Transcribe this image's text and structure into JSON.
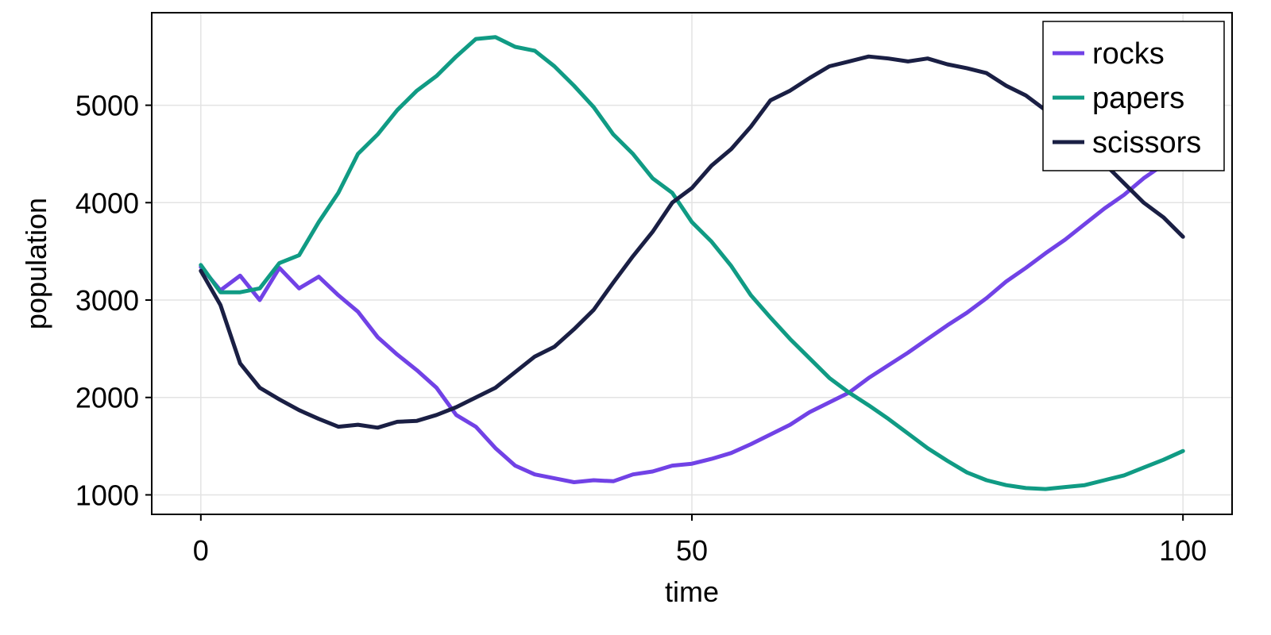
{
  "chart_data": {
    "type": "line",
    "title": "",
    "xlabel": "time",
    "ylabel": "population",
    "xlim": [
      -5,
      105
    ],
    "ylim": [
      800,
      5950
    ],
    "xticks": [
      0,
      50,
      100
    ],
    "xtick_labels": [
      "0",
      "50",
      "100"
    ],
    "yticks": [
      1000,
      2000,
      3000,
      4000,
      5000
    ],
    "ytick_labels": [
      "1000",
      "2000",
      "3000",
      "4000",
      "5000"
    ],
    "grid": true,
    "legend_position": "top-right",
    "x": [
      0,
      2,
      4,
      6,
      8,
      10,
      12,
      14,
      16,
      18,
      20,
      22,
      24,
      26,
      28,
      30,
      32,
      34,
      36,
      38,
      40,
      42,
      44,
      46,
      48,
      50,
      52,
      54,
      56,
      58,
      60,
      62,
      64,
      66,
      68,
      70,
      72,
      74,
      76,
      78,
      80,
      82,
      84,
      86,
      88,
      90,
      92,
      94,
      96,
      98,
      100
    ],
    "series": [
      {
        "name": "rocks",
        "color": "#7142e6",
        "values": [
          3340,
          3100,
          3250,
          3000,
          3330,
          3120,
          3240,
          3050,
          2880,
          2620,
          2440,
          2280,
          2100,
          1820,
          1700,
          1480,
          1300,
          1210,
          1170,
          1130,
          1150,
          1140,
          1210,
          1240,
          1300,
          1320,
          1370,
          1430,
          1520,
          1620,
          1720,
          1850,
          1950,
          2050,
          2200,
          2330,
          2460,
          2600,
          2740,
          2870,
          3020,
          3190,
          3330,
          3480,
          3620,
          3780,
          3940,
          4080,
          4250,
          4390,
          4500
        ]
      },
      {
        "name": "papers",
        "color": "#109b84",
        "values": [
          3360,
          3080,
          3080,
          3120,
          3380,
          3460,
          3800,
          4100,
          4500,
          4700,
          4950,
          5150,
          5300,
          5500,
          5680,
          5700,
          5600,
          5560,
          5400,
          5200,
          4980,
          4700,
          4500,
          4250,
          4100,
          3800,
          3600,
          3350,
          3050,
          2820,
          2600,
          2400,
          2200,
          2050,
          1920,
          1780,
          1630,
          1480,
          1350,
          1230,
          1150,
          1100,
          1070,
          1060,
          1080,
          1100,
          1150,
          1200,
          1280,
          1360,
          1450
        ]
      },
      {
        "name": "scissors",
        "color": "#1a1f44",
        "values": [
          3300,
          2950,
          2350,
          2100,
          1980,
          1870,
          1780,
          1700,
          1720,
          1690,
          1750,
          1760,
          1820,
          1900,
          2000,
          2100,
          2260,
          2420,
          2520,
          2700,
          2900,
          3180,
          3450,
          3700,
          4000,
          4150,
          4380,
          4550,
          4780,
          5050,
          5150,
          5280,
          5400,
          5450,
          5500,
          5480,
          5450,
          5480,
          5420,
          5380,
          5330,
          5200,
          5100,
          4950,
          4800,
          4600,
          4400,
          4200,
          4000,
          3850,
          3650
        ]
      }
    ]
  }
}
